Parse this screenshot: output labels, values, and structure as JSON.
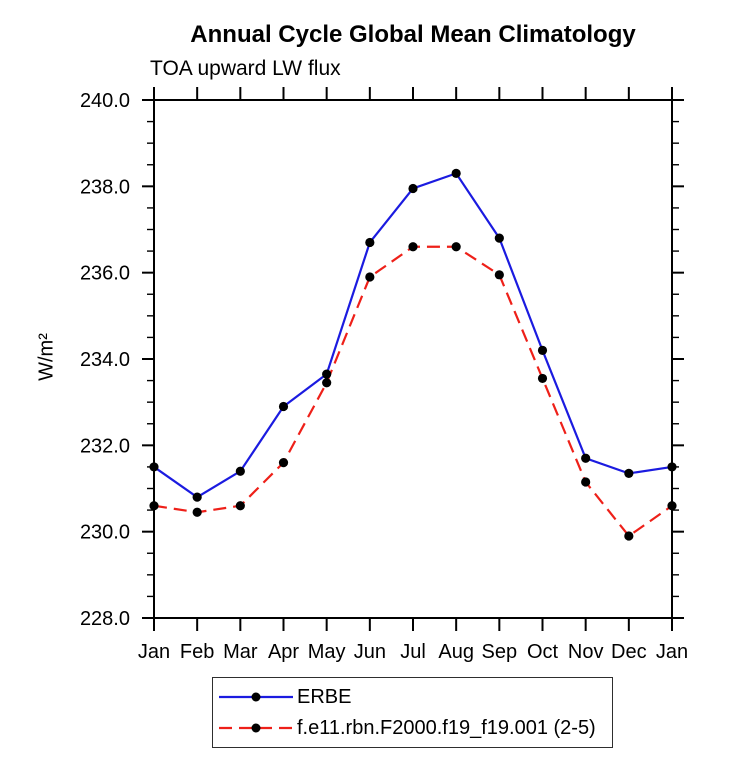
{
  "chart_data": {
    "type": "line",
    "title": "Annual Cycle Global Mean Climatology",
    "subtitle": "TOA upward LW flux",
    "ylabel": "W/m²",
    "xlabel": "",
    "categories": [
      "Jan",
      "Feb",
      "Mar",
      "Apr",
      "May",
      "Jun",
      "Jul",
      "Aug",
      "Sep",
      "Oct",
      "Nov",
      "Dec",
      "Jan"
    ],
    "ylim": [
      228.0,
      240.0
    ],
    "ytick_labels": [
      "228.0",
      "230.0",
      "232.0",
      "234.0",
      "236.0",
      "238.0",
      "240.0"
    ],
    "ytick_step": 2.0,
    "ytick_minor_step": 0.5,
    "grid": false,
    "marker": "filled-circle",
    "marker_color": "#000000",
    "axis_color": "#000000",
    "legend_position": "bottom",
    "series": [
      {
        "name": "ERBE",
        "color": "#1b1be0",
        "line_style": "solid",
        "values": [
          231.5,
          230.8,
          231.4,
          232.9,
          233.65,
          236.7,
          237.95,
          238.3,
          236.8,
          234.2,
          231.7,
          231.35,
          231.5
        ]
      },
      {
        "name": "f.e11.rbn.F2000.f19_f19.001 (2-5)",
        "color": "#ee2019",
        "line_style": "dashed",
        "values": [
          230.6,
          230.45,
          230.6,
          231.6,
          233.45,
          235.9,
          236.6,
          236.6,
          235.95,
          233.55,
          231.15,
          229.9,
          230.6
        ]
      }
    ]
  }
}
